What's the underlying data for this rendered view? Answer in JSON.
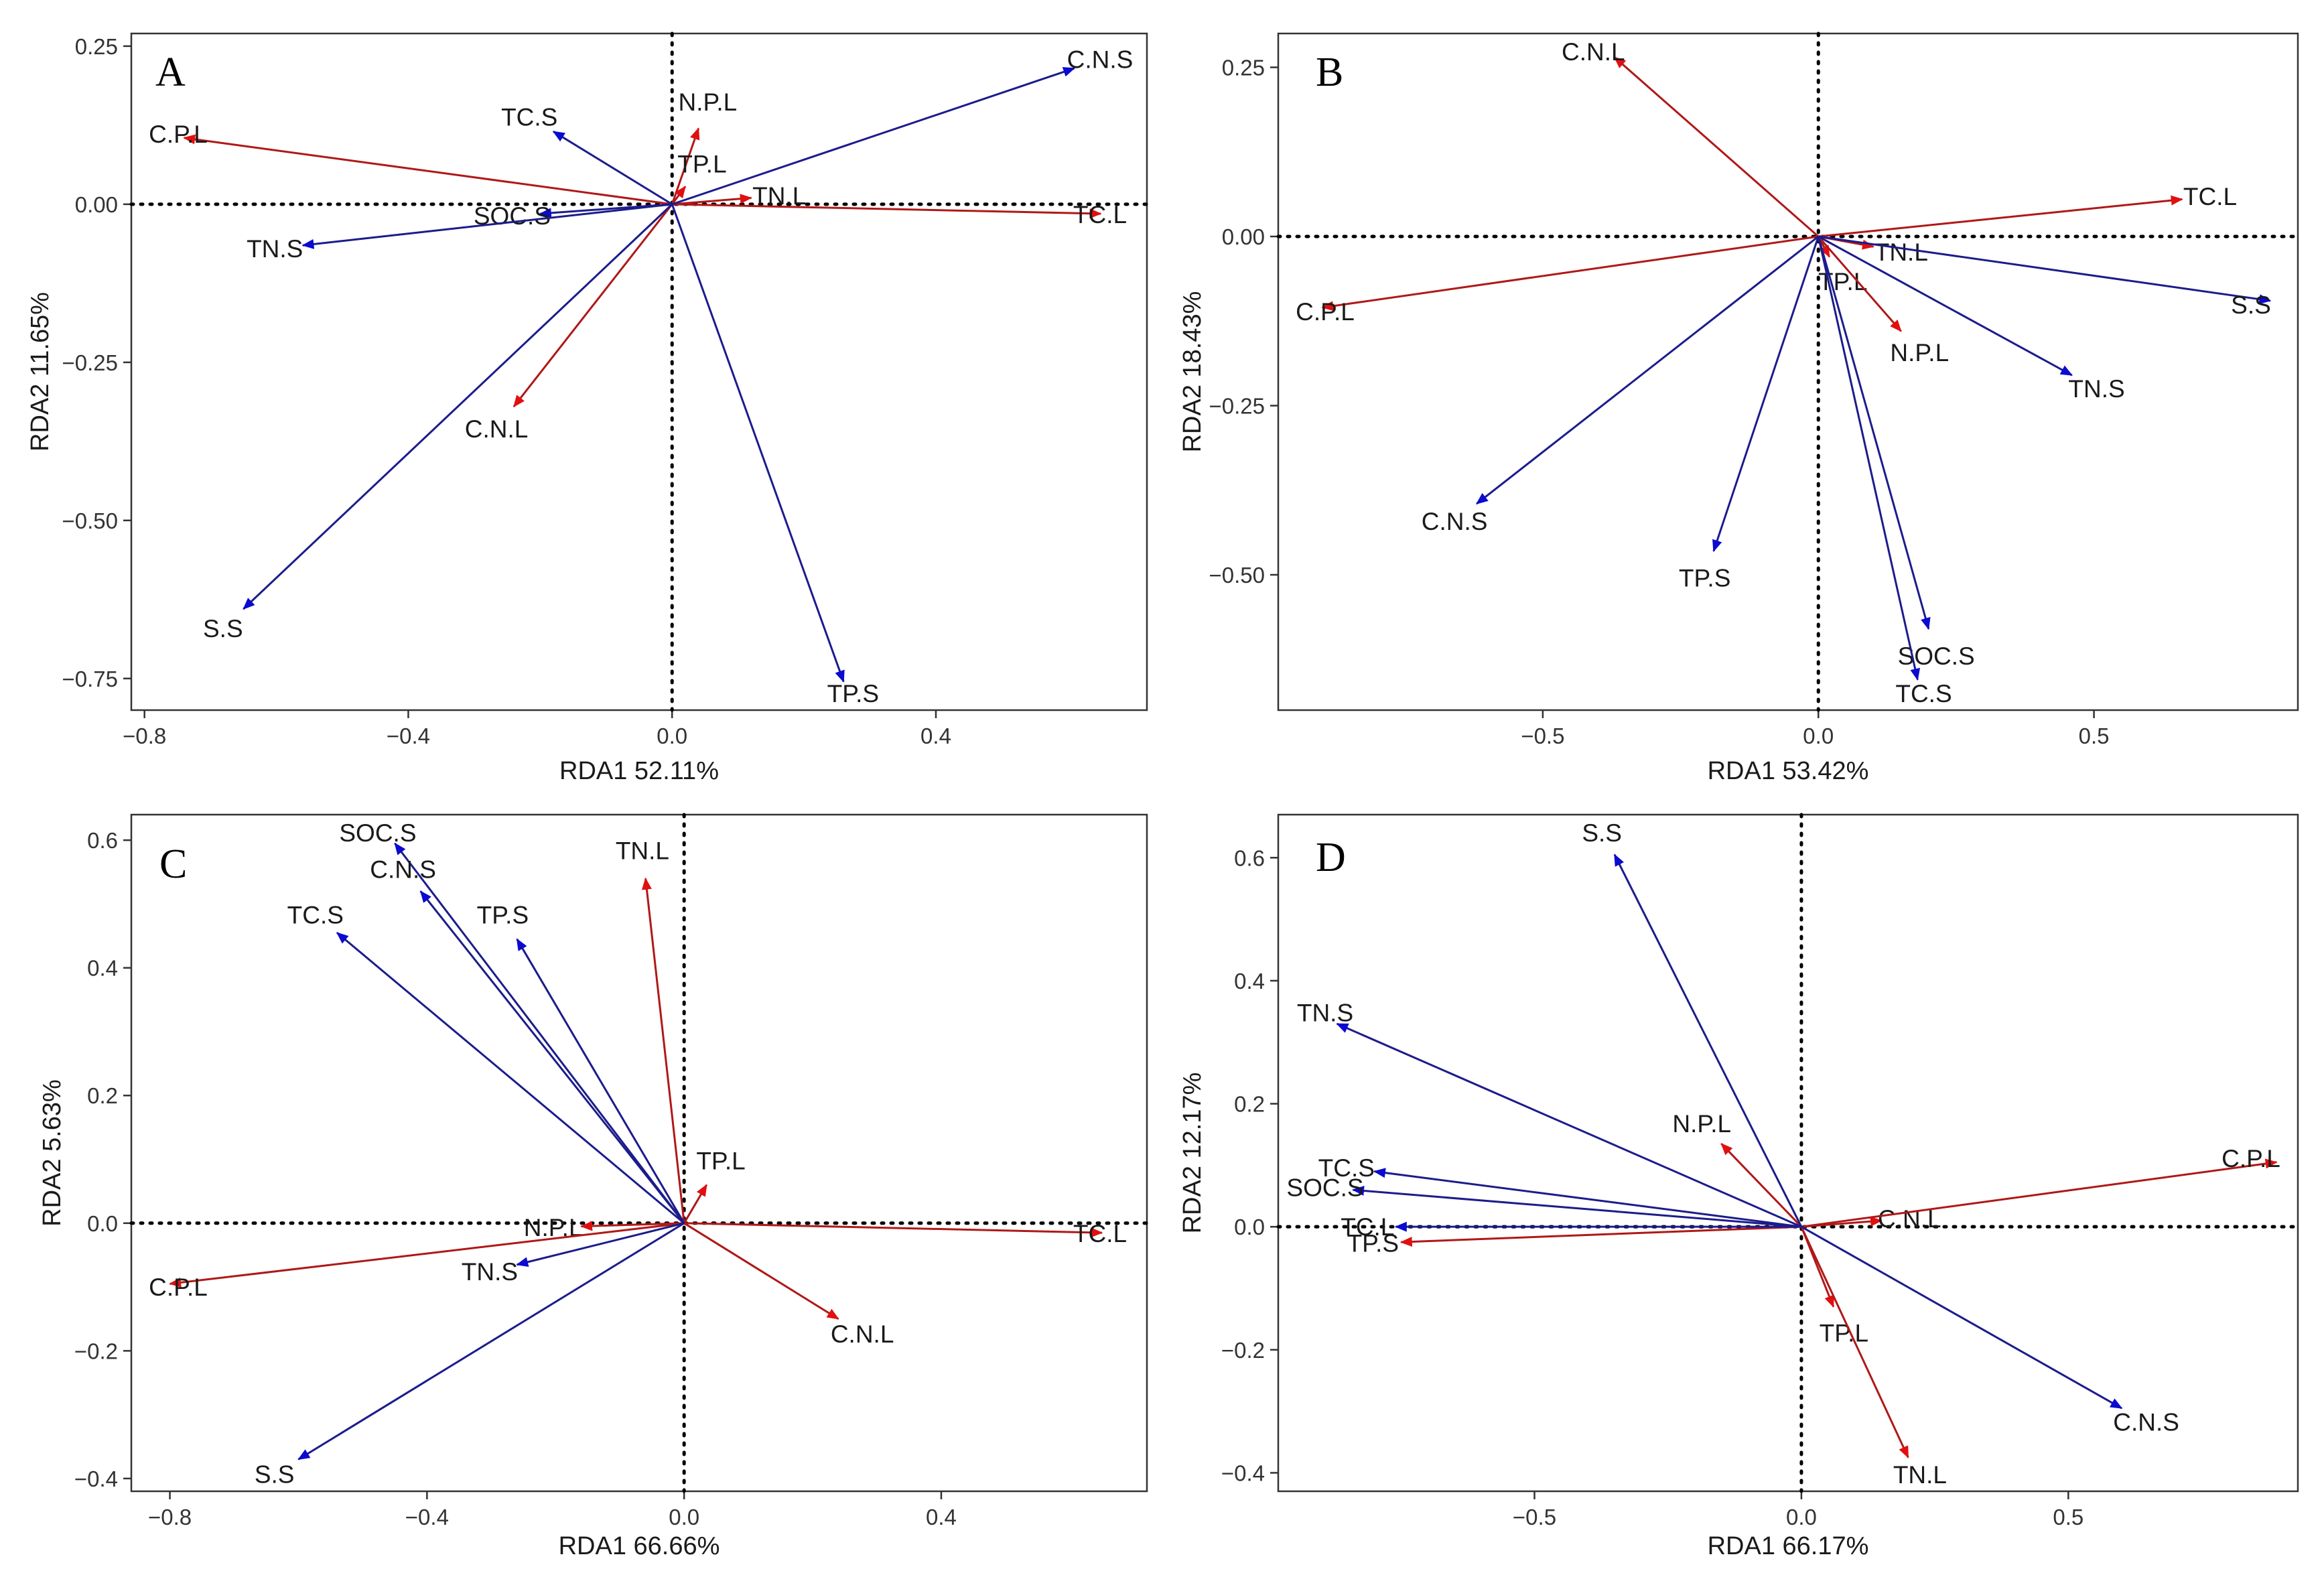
{
  "colors": {
    "soil": "#0a0ad0",
    "leaf": "#e01010",
    "line_soil": "#1c1c8c",
    "line_leaf": "#b01818",
    "frame": "#333333"
  },
  "chart_data": [
    {
      "type": "scatter",
      "panel": "A",
      "title": "A",
      "xlabel": "RDA1 52.11%",
      "ylabel": "RDA2 11.65%",
      "xlim": [
        -0.82,
        0.72
      ],
      "ylim": [
        -0.8,
        0.27
      ],
      "xticks": [
        -0.8,
        -0.4,
        0.0,
        0.4
      ],
      "xtick_labels": [
        "−0.8",
        "−0.4",
        "0.0",
        "0.4"
      ],
      "yticks": [
        -0.75,
        -0.5,
        -0.25,
        0.0,
        0.25
      ],
      "ytick_labels": [
        "−0.75",
        "−0.50",
        "−0.25",
        "0.00",
        "0.25"
      ],
      "vectors": [
        {
          "label": "C.P.L",
          "group": "leaf",
          "x": -0.74,
          "y": 0.105
        },
        {
          "label": "TC.L",
          "group": "leaf",
          "x": 0.65,
          "y": -0.015
        },
        {
          "label": "N.P.L",
          "group": "leaf",
          "x": 0.04,
          "y": 0.12
        },
        {
          "label": "TP.L",
          "group": "leaf",
          "x": 0.02,
          "y": 0.028
        },
        {
          "label": "TN.L",
          "group": "leaf",
          "x": 0.12,
          "y": 0.01
        },
        {
          "label": "C.N.L",
          "group": "leaf",
          "x": -0.24,
          "y": -0.32
        },
        {
          "label": "TC.S",
          "group": "soil",
          "x": -0.18,
          "y": 0.115
        },
        {
          "label": "C.N.S",
          "group": "soil",
          "x": 0.61,
          "y": 0.215
        },
        {
          "label": "SOC.S",
          "group": "soil",
          "x": -0.2,
          "y": -0.015
        },
        {
          "label": "TN.S",
          "group": "soil",
          "x": -0.56,
          "y": -0.065
        },
        {
          "label": "S.S",
          "group": "soil",
          "x": -0.65,
          "y": -0.64
        },
        {
          "label": "TP.S",
          "group": "soil",
          "x": 0.26,
          "y": -0.755
        }
      ]
    },
    {
      "type": "scatter",
      "panel": "B",
      "title": "B",
      "xlabel": "RDA1 53.42%",
      "ylabel": "RDA2 18.43%",
      "xlim": [
        -0.98,
        0.87
      ],
      "ylim": [
        -0.7,
        0.3
      ],
      "xticks": [
        -0.5,
        0.0,
        0.5
      ],
      "xtick_labels": [
        "−0.5",
        "0.0",
        "0.5"
      ],
      "yticks": [
        -0.5,
        -0.25,
        0.0,
        0.25
      ],
      "ytick_labels": [
        "−0.50",
        "−0.25",
        "0.00",
        "0.25"
      ],
      "vectors": [
        {
          "label": "C.N.L",
          "group": "leaf",
          "x": -0.37,
          "y": 0.265
        },
        {
          "label": "TC.L",
          "group": "leaf",
          "x": 0.66,
          "y": 0.055
        },
        {
          "label": "TN.L",
          "group": "leaf",
          "x": 0.1,
          "y": -0.015
        },
        {
          "label": "C.P.L",
          "group": "leaf",
          "x": -0.9,
          "y": -0.105
        },
        {
          "label": "TP.L",
          "group": "leaf",
          "x": 0.02,
          "y": -0.03
        },
        {
          "label": "N.P.L",
          "group": "leaf",
          "x": 0.15,
          "y": -0.14
        },
        {
          "label": "S.S",
          "group": "soil",
          "x": 0.82,
          "y": -0.095
        },
        {
          "label": "TN.S",
          "group": "soil",
          "x": 0.46,
          "y": -0.205
        },
        {
          "label": "C.N.S",
          "group": "soil",
          "x": -0.62,
          "y": -0.395
        },
        {
          "label": "TP.S",
          "group": "soil",
          "x": -0.19,
          "y": -0.465
        },
        {
          "label": "SOC.S",
          "group": "soil",
          "x": 0.2,
          "y": -0.58
        },
        {
          "label": "TC.S",
          "group": "soil",
          "x": 0.18,
          "y": -0.655
        }
      ]
    },
    {
      "type": "scatter",
      "panel": "C",
      "title": "C",
      "xlabel": "RDA1 66.66%",
      "ylabel": "RDA2 5.63%",
      "xlim": [
        -0.86,
        0.72
      ],
      "ylim": [
        -0.42,
        0.64
      ],
      "xticks": [
        -0.8,
        -0.4,
        0.0,
        0.4
      ],
      "xtick_labels": [
        "−0.8",
        "−0.4",
        "0.0",
        "0.4"
      ],
      "yticks": [
        -0.4,
        -0.2,
        0.0,
        0.2,
        0.4,
        0.6
      ],
      "ytick_labels": [
        "−0.4",
        "−0.2",
        "0.0",
        "0.2",
        "0.4",
        "0.6"
      ],
      "vectors": [
        {
          "label": "TN.L",
          "group": "leaf",
          "x": -0.06,
          "y": 0.54
        },
        {
          "label": "TP.L",
          "group": "leaf",
          "x": 0.035,
          "y": 0.06
        },
        {
          "label": "TC.L",
          "group": "leaf",
          "x": 0.65,
          "y": -0.015
        },
        {
          "label": "N.P.L",
          "group": "leaf",
          "x": -0.16,
          "y": -0.005
        },
        {
          "label": "C.P.L",
          "group": "leaf",
          "x": -0.8,
          "y": -0.095
        },
        {
          "label": "C.N.L",
          "group": "leaf",
          "x": 0.24,
          "y": -0.15
        },
        {
          "label": "SOC.S",
          "group": "soil",
          "x": -0.45,
          "y": 0.595
        },
        {
          "label": "C.N.S",
          "group": "soil",
          "x": -0.41,
          "y": 0.52
        },
        {
          "label": "TP.S",
          "group": "soil",
          "x": -0.26,
          "y": 0.445
        },
        {
          "label": "TC.S",
          "group": "soil",
          "x": -0.54,
          "y": 0.455
        },
        {
          "label": "TN.S",
          "group": "soil",
          "x": -0.26,
          "y": -0.065
        },
        {
          "label": "S.S",
          "group": "soil",
          "x": -0.6,
          "y": -0.37
        }
      ]
    },
    {
      "type": "scatter",
      "panel": "D",
      "title": "D",
      "xlabel": "RDA1 66.17%",
      "ylabel": "RDA2 12.17%",
      "xlim": [
        -0.98,
        0.93
      ],
      "ylim": [
        -0.43,
        0.67
      ],
      "xticks": [
        -0.5,
        0.0,
        0.5
      ],
      "xtick_labels": [
        "−0.5",
        "0.0",
        "0.5"
      ],
      "yticks": [
        -0.4,
        -0.2,
        0.0,
        0.2,
        0.4,
        0.6
      ],
      "ytick_labels": [
        "−0.4",
        "−0.2",
        "0.0",
        "0.2",
        "0.4",
        "0.6"
      ],
      "vectors": [
        {
          "label": "N.P.L",
          "group": "leaf",
          "x": -0.15,
          "y": 0.135
        },
        {
          "label": "C.N.L",
          "group": "leaf",
          "x": 0.15,
          "y": 0.01
        },
        {
          "label": "C.P.L",
          "group": "leaf",
          "x": 0.89,
          "y": 0.105
        },
        {
          "label": "TP.S",
          "group": "leaf",
          "x": -0.75,
          "y": -0.025
        },
        {
          "label": "TP.L",
          "group": "leaf",
          "x": 0.06,
          "y": -0.13
        },
        {
          "label": "TN.L",
          "group": "leaf",
          "x": 0.2,
          "y": -0.375
        },
        {
          "label": "S.S",
          "group": "soil",
          "x": -0.35,
          "y": 0.605
        },
        {
          "label": "TN.S",
          "group": "soil",
          "x": -0.87,
          "y": 0.33
        },
        {
          "label": "TC.S",
          "group": "soil",
          "x": -0.8,
          "y": 0.09
        },
        {
          "label": "SOC.S",
          "group": "soil",
          "x": -0.84,
          "y": 0.06
        },
        {
          "label": "TC.L",
          "group": "soil",
          "x": -0.76,
          "y": 0.0
        },
        {
          "label": "C.N.S",
          "group": "soil",
          "x": 0.6,
          "y": -0.295
        }
      ]
    }
  ]
}
